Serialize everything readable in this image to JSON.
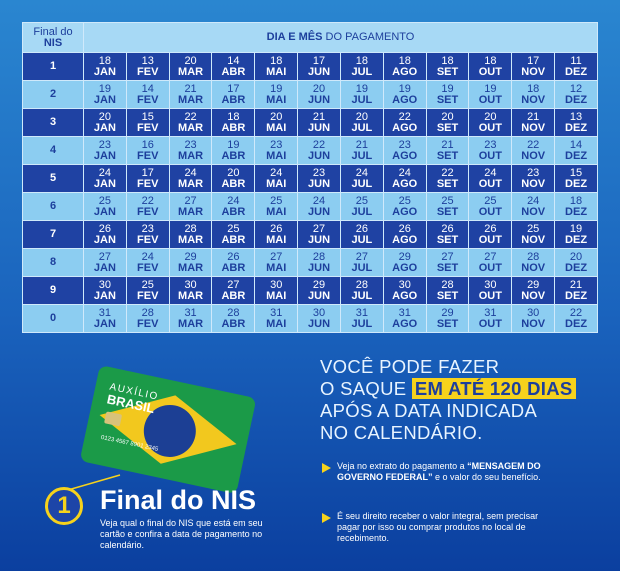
{
  "header": {
    "nis_line1": "Final do",
    "nis_line2": "NIS",
    "title_bold": "DIA E MÊS",
    "title_rest": "DO PAGAMENTO"
  },
  "table": {
    "rows": [
      {
        "nis": "1",
        "cells": [
          [
            "18",
            "JAN"
          ],
          [
            "13",
            "FEV"
          ],
          [
            "20",
            "MAR"
          ],
          [
            "14",
            "ABR"
          ],
          [
            "18",
            "MAI"
          ],
          [
            "17",
            "JUN"
          ],
          [
            "18",
            "JUL"
          ],
          [
            "18",
            "AGO"
          ],
          [
            "18",
            "SET"
          ],
          [
            "18",
            "OUT"
          ],
          [
            "17",
            "NOV"
          ],
          [
            "11",
            "DEZ"
          ]
        ]
      },
      {
        "nis": "2",
        "cells": [
          [
            "19",
            "JAN"
          ],
          [
            "14",
            "FEV"
          ],
          [
            "21",
            "MAR"
          ],
          [
            "17",
            "ABR"
          ],
          [
            "19",
            "MAI"
          ],
          [
            "20",
            "JUN"
          ],
          [
            "19",
            "JUL"
          ],
          [
            "19",
            "AGO"
          ],
          [
            "19",
            "SET"
          ],
          [
            "19",
            "OUT"
          ],
          [
            "18",
            "NOV"
          ],
          [
            "12",
            "DEZ"
          ]
        ]
      },
      {
        "nis": "3",
        "cells": [
          [
            "20",
            "JAN"
          ],
          [
            "15",
            "FEV"
          ],
          [
            "22",
            "MAR"
          ],
          [
            "18",
            "ABR"
          ],
          [
            "20",
            "MAI"
          ],
          [
            "21",
            "JUN"
          ],
          [
            "20",
            "JUL"
          ],
          [
            "22",
            "AGO"
          ],
          [
            "20",
            "SET"
          ],
          [
            "20",
            "OUT"
          ],
          [
            "21",
            "NOV"
          ],
          [
            "13",
            "DEZ"
          ]
        ]
      },
      {
        "nis": "4",
        "cells": [
          [
            "23",
            "JAN"
          ],
          [
            "16",
            "FEV"
          ],
          [
            "23",
            "MAR"
          ],
          [
            "19",
            "ABR"
          ],
          [
            "23",
            "MAI"
          ],
          [
            "22",
            "JUN"
          ],
          [
            "21",
            "JUL"
          ],
          [
            "23",
            "AGO"
          ],
          [
            "21",
            "SET"
          ],
          [
            "23",
            "OUT"
          ],
          [
            "22",
            "NOV"
          ],
          [
            "14",
            "DEZ"
          ]
        ]
      },
      {
        "nis": "5",
        "cells": [
          [
            "24",
            "JAN"
          ],
          [
            "17",
            "FEV"
          ],
          [
            "24",
            "MAR"
          ],
          [
            "20",
            "ABR"
          ],
          [
            "24",
            "MAI"
          ],
          [
            "23",
            "JUN"
          ],
          [
            "24",
            "JUL"
          ],
          [
            "24",
            "AGO"
          ],
          [
            "22",
            "SET"
          ],
          [
            "24",
            "OUT"
          ],
          [
            "23",
            "NOV"
          ],
          [
            "15",
            "DEZ"
          ]
        ]
      },
      {
        "nis": "6",
        "cells": [
          [
            "25",
            "JAN"
          ],
          [
            "22",
            "FEV"
          ],
          [
            "27",
            "MAR"
          ],
          [
            "24",
            "ABR"
          ],
          [
            "25",
            "MAI"
          ],
          [
            "24",
            "JUN"
          ],
          [
            "25",
            "JUL"
          ],
          [
            "25",
            "AGO"
          ],
          [
            "25",
            "SET"
          ],
          [
            "25",
            "OUT"
          ],
          [
            "24",
            "NOV"
          ],
          [
            "18",
            "DEZ"
          ]
        ]
      },
      {
        "nis": "7",
        "cells": [
          [
            "26",
            "JAN"
          ],
          [
            "23",
            "FEV"
          ],
          [
            "28",
            "MAR"
          ],
          [
            "25",
            "ABR"
          ],
          [
            "26",
            "MAI"
          ],
          [
            "27",
            "JUN"
          ],
          [
            "26",
            "JUL"
          ],
          [
            "26",
            "AGO"
          ],
          [
            "26",
            "SET"
          ],
          [
            "26",
            "OUT"
          ],
          [
            "25",
            "NOV"
          ],
          [
            "19",
            "DEZ"
          ]
        ]
      },
      {
        "nis": "8",
        "cells": [
          [
            "27",
            "JAN"
          ],
          [
            "24",
            "FEV"
          ],
          [
            "29",
            "MAR"
          ],
          [
            "26",
            "ABR"
          ],
          [
            "27",
            "MAI"
          ],
          [
            "28",
            "JUN"
          ],
          [
            "27",
            "JUL"
          ],
          [
            "29",
            "AGO"
          ],
          [
            "27",
            "SET"
          ],
          [
            "27",
            "OUT"
          ],
          [
            "28",
            "NOV"
          ],
          [
            "20",
            "DEZ"
          ]
        ]
      },
      {
        "nis": "9",
        "cells": [
          [
            "30",
            "JAN"
          ],
          [
            "25",
            "FEV"
          ],
          [
            "30",
            "MAR"
          ],
          [
            "27",
            "ABR"
          ],
          [
            "30",
            "MAI"
          ],
          [
            "29",
            "JUN"
          ],
          [
            "28",
            "JUL"
          ],
          [
            "30",
            "AGO"
          ],
          [
            "28",
            "SET"
          ],
          [
            "30",
            "OUT"
          ],
          [
            "29",
            "NOV"
          ],
          [
            "21",
            "DEZ"
          ]
        ]
      },
      {
        "nis": "0",
        "cells": [
          [
            "31",
            "JAN"
          ],
          [
            "28",
            "FEV"
          ],
          [
            "31",
            "MAR"
          ],
          [
            "28",
            "ABR"
          ],
          [
            "31",
            "MAI"
          ],
          [
            "30",
            "JUN"
          ],
          [
            "31",
            "JUL"
          ],
          [
            "31",
            "AGO"
          ],
          [
            "29",
            "SET"
          ],
          [
            "31",
            "OUT"
          ],
          [
            "30",
            "NOV"
          ],
          [
            "22",
            "DEZ"
          ]
        ]
      }
    ]
  },
  "notice": {
    "line1": "VOCÊ PODE FAZER",
    "line2_start": "O SAQUE",
    "highlight": "EM ATÉ 120 DIAS",
    "line3": "APÓS A DATA INDICADA",
    "line4": "NO CALENDÁRIO."
  },
  "bullets": [
    {
      "start": "Veja no extrato do pagamento a",
      "bold": "“MENSAGEM DO GOVERNO FEDERAL”",
      "end": "e o valor do seu benefício."
    },
    {
      "start": "É seu direito receber o valor integral, sem precisar pagar por isso ou comprar produtos no local de recebimento."
    }
  ],
  "card": {
    "line1": "AUXÍLIO",
    "line2": "BRASIL",
    "number": "0123 4567 8901 2345"
  },
  "step": {
    "number": "1",
    "title": "Final do NIS",
    "text": "Veja qual o final do NIS que está em seu cartão e confira a data de pagamento no calendário."
  }
}
